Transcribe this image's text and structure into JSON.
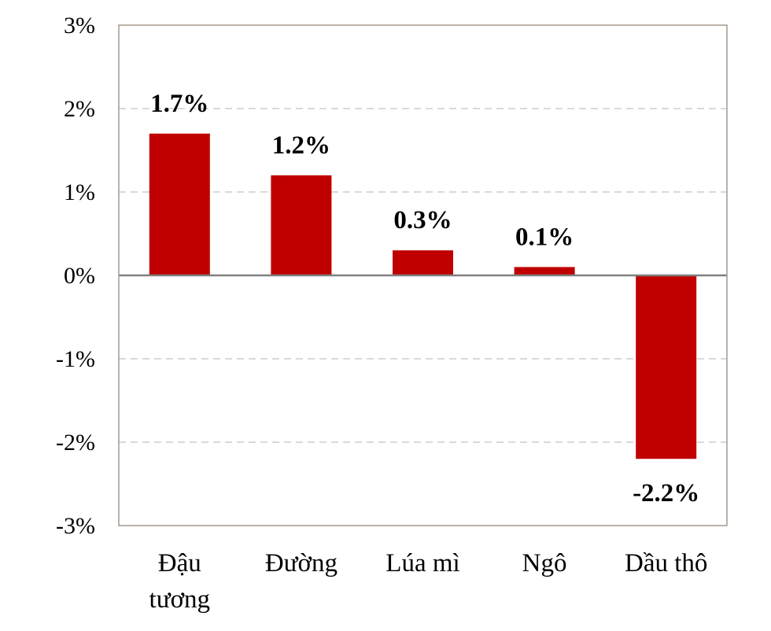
{
  "chart_data": {
    "type": "bar",
    "title": "",
    "xlabel": "",
    "ylabel": "",
    "categories": [
      [
        "Đậu",
        "tương"
      ],
      [
        "Đường"
      ],
      [
        "Lúa mì"
      ],
      [
        "Ngô"
      ],
      [
        "Dầu thô"
      ]
    ],
    "values": [
      1.7,
      1.2,
      0.3,
      0.1,
      -2.2
    ],
    "data_labels": [
      "1.7%",
      "1.2%",
      "0.3%",
      "0.1%",
      "-2.2%"
    ],
    "ylim": [
      -3,
      3
    ],
    "yticks": [
      3,
      2,
      1,
      0,
      -1,
      -2,
      -3
    ],
    "ytick_labels": [
      "3%",
      "2%",
      "1%",
      "0%",
      "-1%",
      "-2%",
      "-3%"
    ],
    "grid": "horizontal-dashed",
    "legend": "none",
    "colors": {
      "bar": "#c00000",
      "grid": "#d9d9d9",
      "zero_line": "#808080",
      "frame": "#a6998c"
    }
  }
}
